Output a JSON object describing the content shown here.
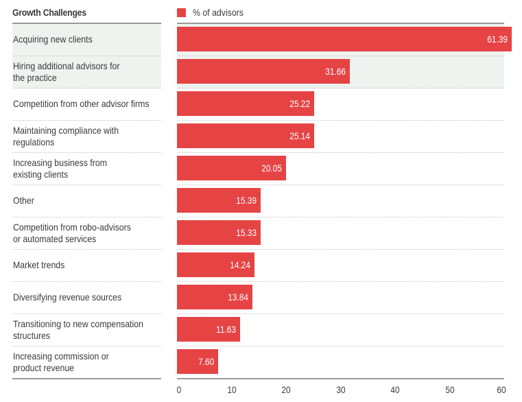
{
  "chart_data": {
    "type": "bar",
    "orientation": "horizontal",
    "title": "Growth Challenges",
    "xlabel": "",
    "ylabel": "",
    "legend": {
      "position": "top-left",
      "entries": [
        {
          "label": "% of advisors",
          "color": "#e64345"
        }
      ]
    },
    "categories": [
      "Acquiring new clients",
      "Hiring additional advisors for\nthe practice",
      "Competition from other advisor firms",
      "Maintaining compliance with\nregulations",
      "Increasing business from\nexisting clients",
      "Other",
      "Competition from robo-advisors\nor automated services",
      "Market trends",
      "Diversifying revenue sources",
      "Transitioning to new compensation\nstructures",
      "Increasing commission or\nproduct revenue"
    ],
    "series": [
      {
        "name": "% of advisors",
        "color": "#e64345",
        "values": [
          61.39,
          31.66,
          25.22,
          25.14,
          20.05,
          15.39,
          15.33,
          14.24,
          13.84,
          11.63,
          7.6
        ],
        "value_labels": [
          "61.39",
          "31.66",
          "25.22",
          "25.14",
          "20.05",
          "15.39",
          "15.33",
          "14.24",
          "13.84",
          "11.63",
          "7.60"
        ]
      }
    ],
    "highlighted_rows": [
      0,
      1
    ],
    "xlim": [
      0,
      60
    ],
    "xticks": [
      0,
      10,
      20,
      30,
      40,
      50,
      60
    ],
    "xtick_labels": [
      "0",
      "10",
      "20",
      "30",
      "40",
      "50",
      "60"
    ],
    "grid": false
  },
  "header": {
    "title": "Growth Challenges",
    "legend_label": "% of advisors"
  },
  "colors": {
    "bar": "#e64345",
    "highlight": "#eef3f0",
    "rule": "#9a9a9a",
    "text": "#3a3a3a"
  }
}
